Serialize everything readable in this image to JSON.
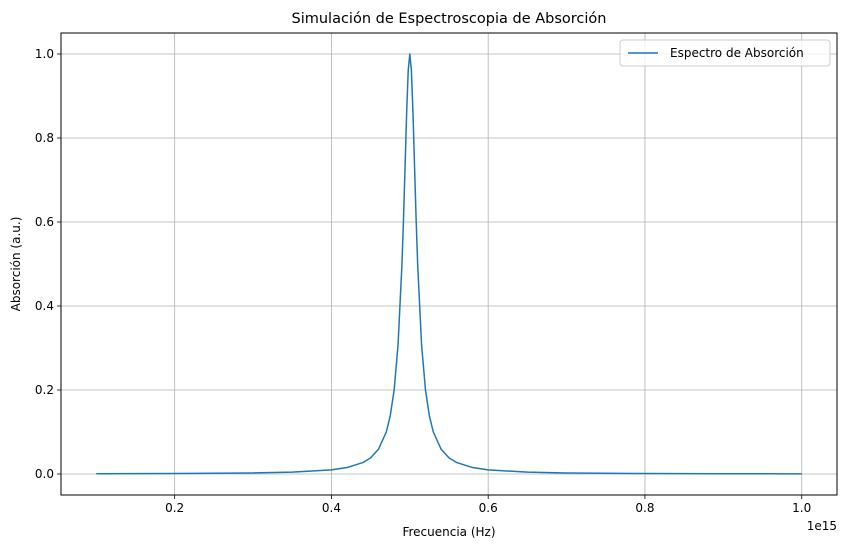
{
  "chart_data": {
    "type": "line",
    "title": "Simulación de Espectroscopia de Absorción",
    "xlabel": "Frecuencia (Hz)",
    "ylabel": "Absorción (a.u.)",
    "x_offset_label": "1e15",
    "xlim": [
      0.055,
      1.045
    ],
    "ylim": [
      -0.05,
      1.05
    ],
    "x_ticks": [
      0.2,
      0.4,
      0.6,
      0.8,
      1.0
    ],
    "x_tick_labels": [
      "0.2",
      "0.4",
      "0.6",
      "0.8",
      "1.0"
    ],
    "y_ticks": [
      0.0,
      0.2,
      0.4,
      0.6,
      0.8,
      1.0
    ],
    "y_tick_labels": [
      "0.0",
      "0.2",
      "0.4",
      "0.6",
      "0.8",
      "1.0"
    ],
    "grid": true,
    "legend_position": "top-right",
    "series": [
      {
        "name": "Espectro de Absorción",
        "color": "#1f77b4",
        "x": [
          0.1,
          0.2,
          0.3,
          0.35,
          0.4,
          0.42,
          0.44,
          0.45,
          0.46,
          0.47,
          0.475,
          0.48,
          0.485,
          0.49,
          0.492,
          0.494,
          0.496,
          0.498,
          0.5,
          0.502,
          0.504,
          0.506,
          0.508,
          0.51,
          0.515,
          0.52,
          0.525,
          0.53,
          0.54,
          0.55,
          0.56,
          0.58,
          0.6,
          0.65,
          0.7,
          0.8,
          0.9,
          1.0
        ],
        "y": [
          0.0006,
          0.0011,
          0.0025,
          0.0044,
          0.0099,
          0.0154,
          0.0272,
          0.0385,
          0.0588,
          0.1,
          0.138,
          0.2,
          0.3077,
          0.5,
          0.6098,
          0.7353,
          0.8621,
          0.9615,
          1.0,
          0.9615,
          0.8621,
          0.7353,
          0.6098,
          0.5,
          0.3077,
          0.2,
          0.138,
          0.1,
          0.0588,
          0.0385,
          0.0272,
          0.0154,
          0.0099,
          0.0044,
          0.0025,
          0.0011,
          0.0006,
          0.0004
        ]
      }
    ]
  }
}
